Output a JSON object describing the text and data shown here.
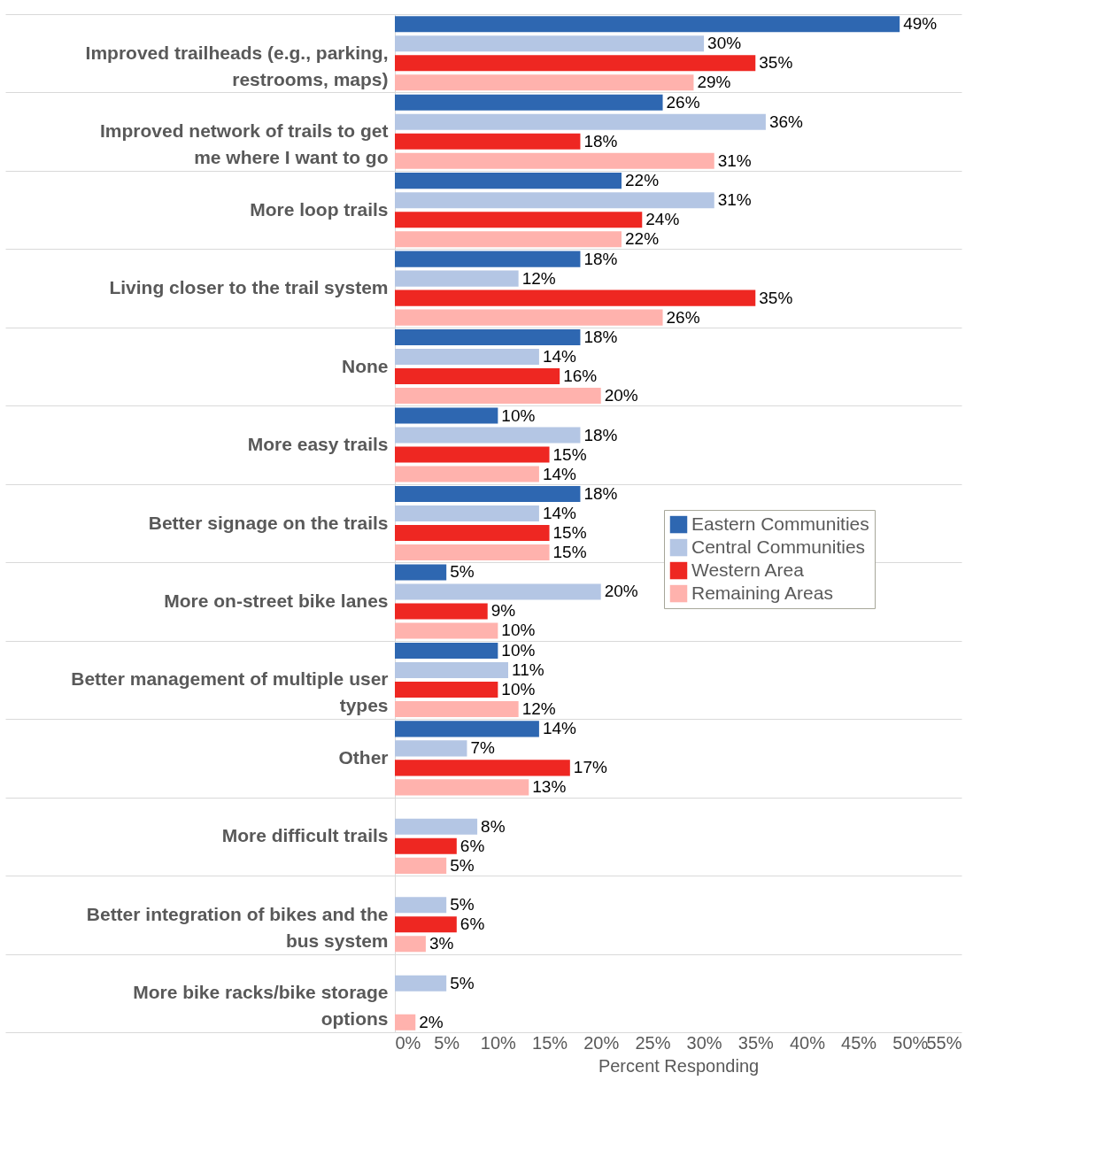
{
  "chart_data": {
    "type": "bar",
    "orientation": "horizontal",
    "xlabel": "Percent Responding",
    "categories": [
      "Improved trailheads (e.g., parking, restrooms, maps)",
      "Improved network of trails to get me where I want to go",
      "More loop trails",
      "Living closer to the trail system",
      "None",
      "More easy trails",
      "Better signage on the trails",
      "More on-street bike lanes",
      "Better management of multiple user types",
      "Other",
      "More difficult trails",
      "Better integration of bikes and the bus system",
      "More bike racks/bike storage options"
    ],
    "series": [
      {
        "name": "Eastern Communities",
        "color": "#2e67b1",
        "values": [
          49,
          26,
          22,
          18,
          18,
          10,
          18,
          5,
          10,
          14,
          null,
          null,
          null
        ],
        "value_labels": [
          "49%",
          "26%",
          "22%",
          "18%",
          "18%",
          "10%",
          "18%",
          "5%",
          "10%",
          "14%",
          null,
          null,
          null
        ]
      },
      {
        "name": "Central Communities",
        "color": "#b4c6e4",
        "values": [
          30,
          36,
          31,
          12,
          14,
          18,
          14,
          20,
          11,
          7,
          8,
          5,
          5
        ],
        "value_labels": [
          "30%",
          "36%",
          "31%",
          "12%",
          "14%",
          "18%",
          "14%",
          "20%",
          "11%",
          "7%",
          "8%",
          "5%",
          "5%"
        ]
      },
      {
        "name": "Western Area",
        "color": "#ee2722",
        "values": [
          35,
          18,
          24,
          35,
          16,
          15,
          15,
          9,
          10,
          17,
          6,
          6,
          null
        ],
        "value_labels": [
          "35%",
          "18%",
          "24%",
          "35%",
          "16%",
          "15%",
          "15%",
          "9%",
          "10%",
          "17%",
          "6%",
          "6%",
          null
        ]
      },
      {
        "name": "Remaining Areas",
        "color": "#ffb2ad",
        "values": [
          29,
          31,
          22,
          26,
          20,
          14,
          15,
          10,
          12,
          13,
          5,
          3,
          2
        ],
        "value_labels": [
          "29%",
          "31%",
          "22%",
          "26%",
          "20%",
          "14%",
          "15%",
          "10%",
          "12%",
          "13%",
          "5%",
          "3%",
          "2%"
        ]
      }
    ],
    "xlim": [
      0,
      55
    ],
    "xticks": [
      {
        "value": 0,
        "label": "0%"
      },
      {
        "value": 5,
        "label": "5%"
      },
      {
        "value": 10,
        "label": "10%"
      },
      {
        "value": 15,
        "label": "15%"
      },
      {
        "value": 20,
        "label": "20%"
      },
      {
        "value": 25,
        "label": "25%"
      },
      {
        "value": 30,
        "label": "30%"
      },
      {
        "value": 35,
        "label": "35%"
      },
      {
        "value": 40,
        "label": "40%"
      },
      {
        "value": 45,
        "label": "45%"
      },
      {
        "value": 50,
        "label": "50%"
      },
      {
        "value": 55,
        "label": "55%"
      }
    ],
    "grid": "y",
    "legend": "right"
  }
}
